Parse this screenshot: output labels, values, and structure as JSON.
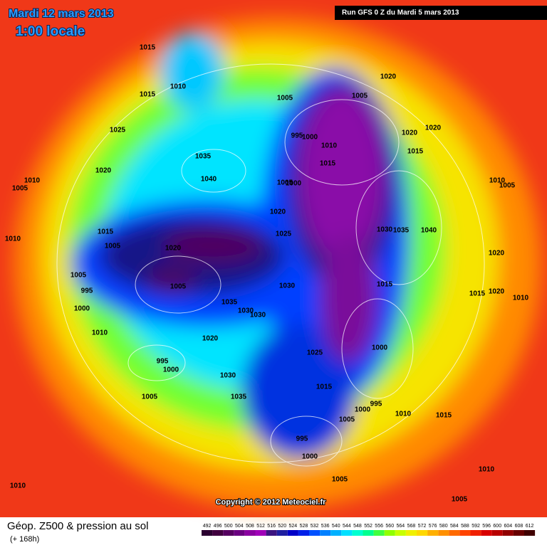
{
  "header": {
    "date": "Mardi 12 mars 2013",
    "time": "1:00 locale",
    "run": "Run GFS 0 Z du Mardi 5 mars 2013"
  },
  "copyright": "Copyright © 2012 Meteociel.fr",
  "legend": {
    "title": "Géop. Z500 & pression au sol",
    "subtitle": "(+ 168h)",
    "values": [
      492,
      496,
      500,
      504,
      508,
      512,
      516,
      520,
      524,
      528,
      532,
      536,
      540,
      544,
      548,
      552,
      556,
      560,
      564,
      568,
      572,
      576,
      580,
      584,
      588,
      592,
      596,
      600,
      604,
      608,
      612
    ],
    "colors": [
      "#2a0030",
      "#40003f",
      "#550060",
      "#6a0080",
      "#8a00a0",
      "#a000b8",
      "#3c1480",
      "#1f1fa0",
      "#0000c8",
      "#0020e8",
      "#0050ff",
      "#0080ff",
      "#00b0ff",
      "#00e0ff",
      "#00ffd0",
      "#00ff90",
      "#40ff40",
      "#90ff00",
      "#c8ff00",
      "#f0f000",
      "#ffd800",
      "#ffb000",
      "#ff9000",
      "#ff6a00",
      "#ff4400",
      "#f02000",
      "#d80000",
      "#b80000",
      "#900000",
      "#680000",
      "#400000"
    ]
  },
  "isobar_labels": [
    "1015",
    "1010",
    "1015",
    "1025",
    "1020",
    "1010",
    "1005",
    "1035",
    "1040",
    "1010",
    "1015",
    "1005",
    "1020",
    "1005",
    "995",
    "1000",
    "1005",
    "1035",
    "1030",
    "1030",
    "1010",
    "1020",
    "995",
    "1000",
    "1030",
    "1005",
    "1035",
    "1010",
    "1020",
    "1005",
    "1005",
    "1020",
    "1020",
    "995",
    "1000",
    "1010",
    "1015",
    "1015",
    "1005",
    "1000",
    "1010",
    "1005",
    "1020",
    "1025",
    "1030",
    "1035",
    "1040",
    "1020",
    "1030",
    "1015",
    "1015",
    "1020",
    "1010",
    "1025",
    "1000",
    "1015",
    "995",
    "1000",
    "1005",
    "1010",
    "1015",
    "995",
    "1000",
    "1005",
    "1010",
    "1005"
  ]
}
